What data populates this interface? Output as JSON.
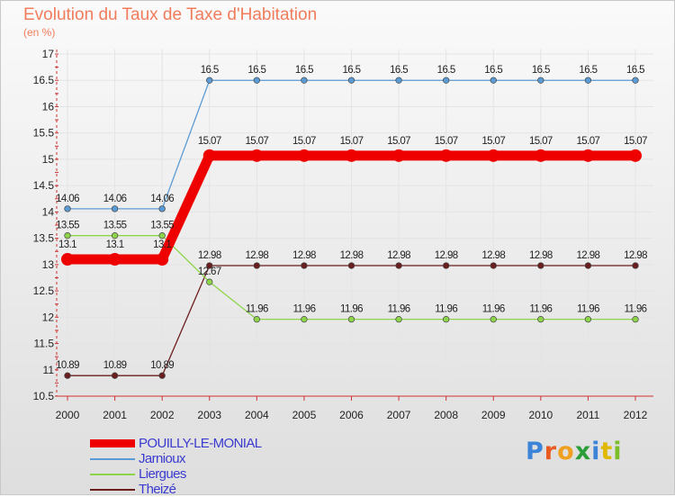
{
  "header": {
    "title": "Evolution du Taux de Taxe d'Habitation",
    "unit": "(en %)"
  },
  "logo": {
    "letters": [
      "P",
      "r",
      "o",
      "x",
      "i",
      "t",
      "i"
    ],
    "colors": [
      "#3b84d8",
      "#e85a1e",
      "#f0a020",
      "#2c9e3a",
      "#3b84d8",
      "#e0b800",
      "#7cbd2a"
    ]
  },
  "chart_data": {
    "type": "line",
    "x": [
      "2000",
      "2001",
      "2002",
      "2003",
      "2004",
      "2005",
      "2006",
      "2007",
      "2008",
      "2009",
      "2010",
      "2011",
      "2012"
    ],
    "ylim": [
      10.5,
      17
    ],
    "yticks": [
      "10.5",
      "11",
      "11.5",
      "12",
      "12.5",
      "13",
      "13.5",
      "14",
      "14.5",
      "15",
      "15.5",
      "16",
      "16.5",
      "17"
    ],
    "grid": true,
    "legend_position": "bottom-left",
    "series": [
      {
        "name": "POUILLY-LE-MONIAL",
        "color": "#ee0000",
        "emphasis": true,
        "values": [
          13.1,
          13.1,
          13.1,
          15.07,
          15.07,
          15.07,
          15.07,
          15.07,
          15.07,
          15.07,
          15.07,
          15.07,
          15.07
        ],
        "labels": [
          "13.1",
          "13.1",
          "13.1",
          "15.07",
          "15.07",
          "15.07",
          "15.07",
          "15.07",
          "15.07",
          "15.07",
          "15.07",
          "15.07",
          "15.07"
        ]
      },
      {
        "name": "Jarnioux",
        "color": "#5b9bd5",
        "values": [
          14.06,
          14.06,
          14.06,
          16.5,
          16.5,
          16.5,
          16.5,
          16.5,
          16.5,
          16.5,
          16.5,
          16.5,
          16.5
        ],
        "labels": [
          "14.06",
          "14.06",
          "14.06",
          "16.5",
          "16.5",
          "16.5",
          "16.5",
          "16.5",
          "16.5",
          "16.5",
          "16.5",
          "16.5",
          "16.5"
        ]
      },
      {
        "name": "Liergues",
        "color": "#8ed44a",
        "values": [
          13.55,
          13.55,
          13.55,
          12.67,
          11.96,
          11.96,
          11.96,
          11.96,
          11.96,
          11.96,
          11.96,
          11.96,
          11.96
        ],
        "labels": [
          "13.55",
          "13.55",
          "13.55",
          "12.67",
          "11.96",
          "11.96",
          "11.96",
          "11.96",
          "11.96",
          "11.96",
          "11.96",
          "11.96",
          "11.96"
        ]
      },
      {
        "name": "Theizé",
        "color": "#6b1e1e",
        "values": [
          10.89,
          10.89,
          10.89,
          12.98,
          12.98,
          12.98,
          12.98,
          12.98,
          12.98,
          12.98,
          12.98,
          12.98,
          12.98
        ],
        "labels": [
          "10.89",
          "10.89",
          "10.89",
          "12.98",
          "12.98",
          "12.98",
          "12.98",
          "12.98",
          "12.98",
          "12.98",
          "12.98",
          "12.98",
          "12.98"
        ]
      }
    ]
  }
}
